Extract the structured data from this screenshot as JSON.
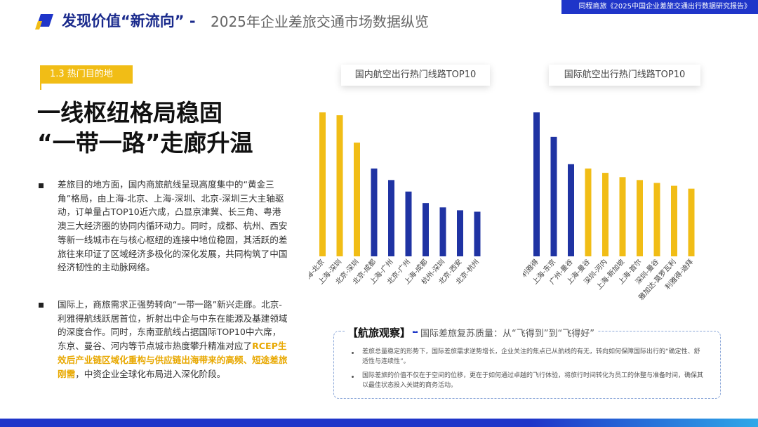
{
  "header": {
    "title": "发现价值“新流向” -",
    "subtitle": "2025年企业差旅交通市场数据纵览",
    "source_tag": "同程商旅《2025中国企业差旅交通出行数据研究报告》"
  },
  "section": {
    "tag": "1.3 热门目的地",
    "title_line1": "一线枢纽格局稳固",
    "title_line2": "“一带一路”走廊升温"
  },
  "paragraphs": {
    "p1": "差旅目的地方面，国内商旅航线呈现高度集中的“黄金三角”格局，由上海-北京、上海-深圳、北京-深圳三大主轴驱动，订单量占TOP10近六成，凸显京津冀、长三角、粤港澳三大经济圈的协同内循环动力。同时，成都、杭州、西安等新一线城市在与核心枢纽的连接中地位稳固，其活跃的差旅往来印证了区域经济多极化的深化发展，共同构筑了中国经济韧性的主动脉网络。",
    "p2_prefix": "国际上，商旅需求正强势转向“一带一路”新兴走廊。北京-利雅得航线跃居首位，折射出中企与中东在能源及基建领域的深度合作。同时，东南亚航线占据国际TOP10中六席，东京、曼谷、河内等节点城市热度攀升精准对应了",
    "p2_highlight": "RCEP生效后产业链区域化重构与供应链出海带来的高频、短途差旅刚需",
    "p2_suffix": "，中资企业全球化布局进入深化阶段。"
  },
  "chart_data": [
    {
      "type": "bar",
      "title": "国内航空出行热门线路TOP10",
      "categories": [
        "上海-北京",
        "上海-深圳",
        "北京-深圳",
        "北京-成都",
        "上海-广州",
        "北京-广州",
        "上海-成都",
        "杭州-深圳",
        "北京-西安",
        "北京-杭州"
      ],
      "values": [
        100,
        98,
        79,
        61,
        53,
        45,
        37,
        34,
        32,
        31
      ],
      "colors": [
        "#f1bd16",
        "#f1bd16",
        "#f1bd16",
        "#1f33a3",
        "#1f33a3",
        "#1f33a3",
        "#1f33a3",
        "#1f33a3",
        "#1f33a3",
        "#1f33a3"
      ],
      "ylim": [
        0,
        100
      ]
    },
    {
      "type": "bar",
      "title": "国际航空出行热门线路TOP10",
      "categories": [
        "北京-利雅得",
        "上海-东京",
        "广州-曼谷",
        "上海-曼谷",
        "深圳-河内",
        "上海-新加坡",
        "上海-首尔",
        "深圳-曼谷",
        "雅加达-莫罗瓦利",
        "利雅得-迪拜"
      ],
      "values": [
        100,
        83,
        64,
        61,
        58,
        55,
        53,
        51,
        49,
        47
      ],
      "colors": [
        "#1f33a3",
        "#1f33a3",
        "#1f33a3",
        "#f1bd16",
        "#f1bd16",
        "#f1bd16",
        "#f1bd16",
        "#f1bd16",
        "#f1bd16",
        "#f1bd16"
      ],
      "ylim": [
        0,
        100
      ]
    }
  ],
  "observation": {
    "title": "【航旅观察】",
    "subtitle": "国际差旅复苏质量：从“飞得到”到“飞得好”",
    "items": [
      "差旅总量稳定的形势下，国际差旅需求逆势增长，企业关注的焦点已从航线的有无，转向如何保障国际出行的“确定性、舒适性与连续性”。",
      "国际差旅的价值不仅在于空间的位移，更在于如何通过卓越的飞行体验，将旅行时间转化为员工的休整与准备时间，确保其以最佳状态投入关键的商务活动。"
    ]
  },
  "colors": {
    "navy": "#1f33a3",
    "gold": "#f1bd16",
    "brand": "#1f35c9"
  }
}
